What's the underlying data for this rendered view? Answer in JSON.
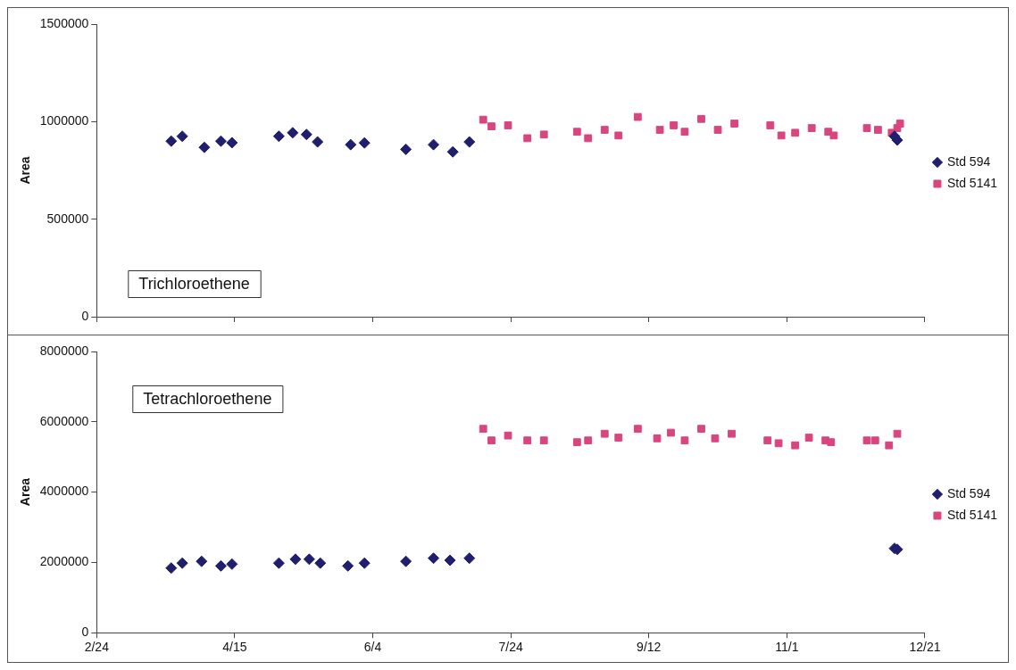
{
  "chart_data": [
    {
      "type": "scatter",
      "title": "Trichloroethene",
      "ylabel": "Area",
      "xlim": [
        "--02-24",
        "--12-21"
      ],
      "xticks": [
        {
          "value": "--02-24",
          "label": null
        },
        {
          "value": "--04-15",
          "label": null
        },
        {
          "value": "--06-04",
          "label": null
        },
        {
          "value": "--07-24",
          "label": null
        },
        {
          "value": "--09-12",
          "label": null
        },
        {
          "value": "--11-01",
          "label": null
        },
        {
          "value": "--12-21",
          "label": null
        }
      ],
      "ylim": [
        0,
        1500000
      ],
      "yticks": [
        0,
        500000,
        1000000,
        1500000
      ],
      "tick_labels": "y",
      "grid": false,
      "legend": "right",
      "series": [
        {
          "name": "Std 594",
          "color": "#1f1f6e",
          "marker": "diamond",
          "x": [
            "--03-23",
            "--03-27",
            "--04-04",
            "--04-10",
            "--04-14",
            "--05-01",
            "--05-06",
            "--05-11",
            "--05-15",
            "--05-27",
            "--06-01",
            "--06-16",
            "--06-26",
            "--07-03",
            "--07-09",
            "--12-10",
            "--12-11"
          ],
          "values": [
            900000,
            925000,
            868000,
            900000,
            892000,
            925000,
            943000,
            934000,
            896000,
            882000,
            891000,
            858000,
            882000,
            845000,
            896000,
            925000,
            905000
          ]
        },
        {
          "name": "Std 5141",
          "color": "#d9457f",
          "marker": "square",
          "x": [
            "--07-14",
            "--07-17",
            "--07-23",
            "--07-30",
            "--08-05",
            "--08-17",
            "--08-21",
            "--08-27",
            "--09-01",
            "--09-08",
            "--09-16",
            "--09-21",
            "--09-25",
            "--10-01",
            "--10-07",
            "--10-13",
            "--10-26",
            "--10-30",
            "--11-04",
            "--11-10",
            "--11-16",
            "--11-18",
            "--11-30",
            "--12-04",
            "--12-09",
            "--12-11",
            "--12-12"
          ],
          "values": [
            1010000,
            976000,
            981000,
            915000,
            934000,
            948000,
            915000,
            958000,
            929000,
            1024000,
            958000,
            981000,
            948000,
            1014000,
            958000,
            990000,
            981000,
            929000,
            943000,
            967000,
            948000,
            929000,
            967000,
            958000,
            943000,
            967000,
            990000
          ]
        }
      ]
    },
    {
      "type": "scatter",
      "title": "Tetrachloroethene",
      "ylabel": "Area",
      "xlim": [
        "--02-24",
        "--12-21"
      ],
      "xticks": [
        {
          "value": "--02-24",
          "label": "2/24"
        },
        {
          "value": "--04-15",
          "label": "4/15"
        },
        {
          "value": "--06-04",
          "label": "6/4"
        },
        {
          "value": "--07-24",
          "label": "7/24"
        },
        {
          "value": "--09-12",
          "label": "9/12"
        },
        {
          "value": "--11-01",
          "label": "11/1"
        },
        {
          "value": "--12-21",
          "label": "12/21"
        }
      ],
      "ylim": [
        0,
        8000000
      ],
      "yticks": [
        0,
        2000000,
        4000000,
        6000000,
        8000000
      ],
      "grid": false,
      "legend": "right",
      "series": [
        {
          "name": "Std 594",
          "color": "#1f1f6e",
          "marker": "diamond",
          "x": [
            "--03-23",
            "--03-27",
            "--04-03",
            "--04-10",
            "--04-14",
            "--05-01",
            "--05-07",
            "--05-12",
            "--05-16",
            "--05-26",
            "--06-01",
            "--06-16",
            "--06-26",
            "--07-02",
            "--07-09",
            "--12-10",
            "--12-11"
          ],
          "values": [
            1840000,
            1980000,
            2030000,
            1900000,
            1950000,
            1980000,
            2090000,
            2090000,
            1980000,
            1900000,
            1980000,
            2030000,
            2120000,
            2060000,
            2120000,
            2400000,
            2370000
          ]
        },
        {
          "name": "Std 5141",
          "color": "#d9457f",
          "marker": "square",
          "x": [
            "--07-14",
            "--07-17",
            "--07-23",
            "--07-30",
            "--08-05",
            "--08-17",
            "--08-21",
            "--08-27",
            "--09-01",
            "--09-08",
            "--09-15",
            "--09-20",
            "--09-25",
            "--10-01",
            "--10-06",
            "--10-12",
            "--10-25",
            "--10-29",
            "--11-04",
            "--11-09",
            "--11-15",
            "--11-17",
            "--11-30",
            "--12-03",
            "--12-08",
            "--12-11"
          ],
          "values": [
            5800000,
            5470000,
            5610000,
            5470000,
            5470000,
            5420000,
            5470000,
            5660000,
            5550000,
            5800000,
            5530000,
            5690000,
            5470000,
            5800000,
            5530000,
            5660000,
            5470000,
            5390000,
            5330000,
            5550000,
            5470000,
            5420000,
            5470000,
            5470000,
            5330000,
            5660000
          ]
        }
      ]
    }
  ]
}
